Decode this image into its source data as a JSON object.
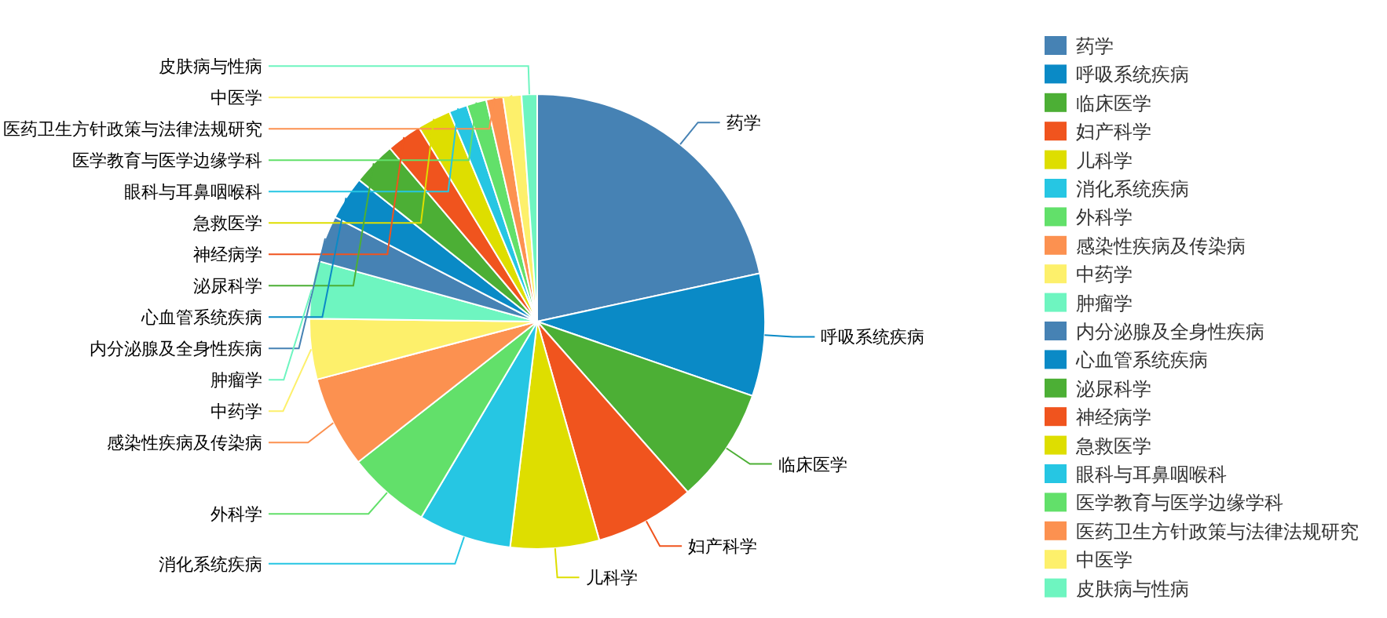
{
  "chart_data": {
    "type": "pie",
    "legend": "right",
    "categories": [
      "药学",
      "呼吸系统疾病",
      "临床医学",
      "妇产科学",
      "儿科学",
      "消化系统疾病",
      "外科学",
      "感染性疾病及传染病",
      "中药学",
      "肿瘤学",
      "内分泌腺及全身性疾病",
      "心血管系统疾病",
      "泌尿科学",
      "神经病学",
      "急救医学",
      "眼科与耳鼻咽喉科",
      "医学教育与医学边缘学科",
      "医药卫生方针政策与法律法规研究",
      "中医学",
      "皮肤病与性病"
    ],
    "values": [
      21.6,
      8.7,
      8.2,
      7.1,
      6.3,
      6.6,
      5.9,
      6.5,
      4.3,
      4.1,
      3.3,
      3.1,
      3.1,
      2.5,
      2.4,
      1.3,
      1.4,
      1.2,
      1.3,
      1.1
    ],
    "colors": [
      "#4682b4",
      "#0a8ac6",
      "#4caf35",
      "#f0541e",
      "#dede00",
      "#26c6e3",
      "#62e06a",
      "#fc9150",
      "#fdf06b",
      "#6ef5c0",
      "#4682b4",
      "#0a8ac6",
      "#4caf35",
      "#f0541e",
      "#dede00",
      "#26c6e3",
      "#62e06a",
      "#fc9150",
      "#fdf06b",
      "#6ef5c0"
    ]
  }
}
